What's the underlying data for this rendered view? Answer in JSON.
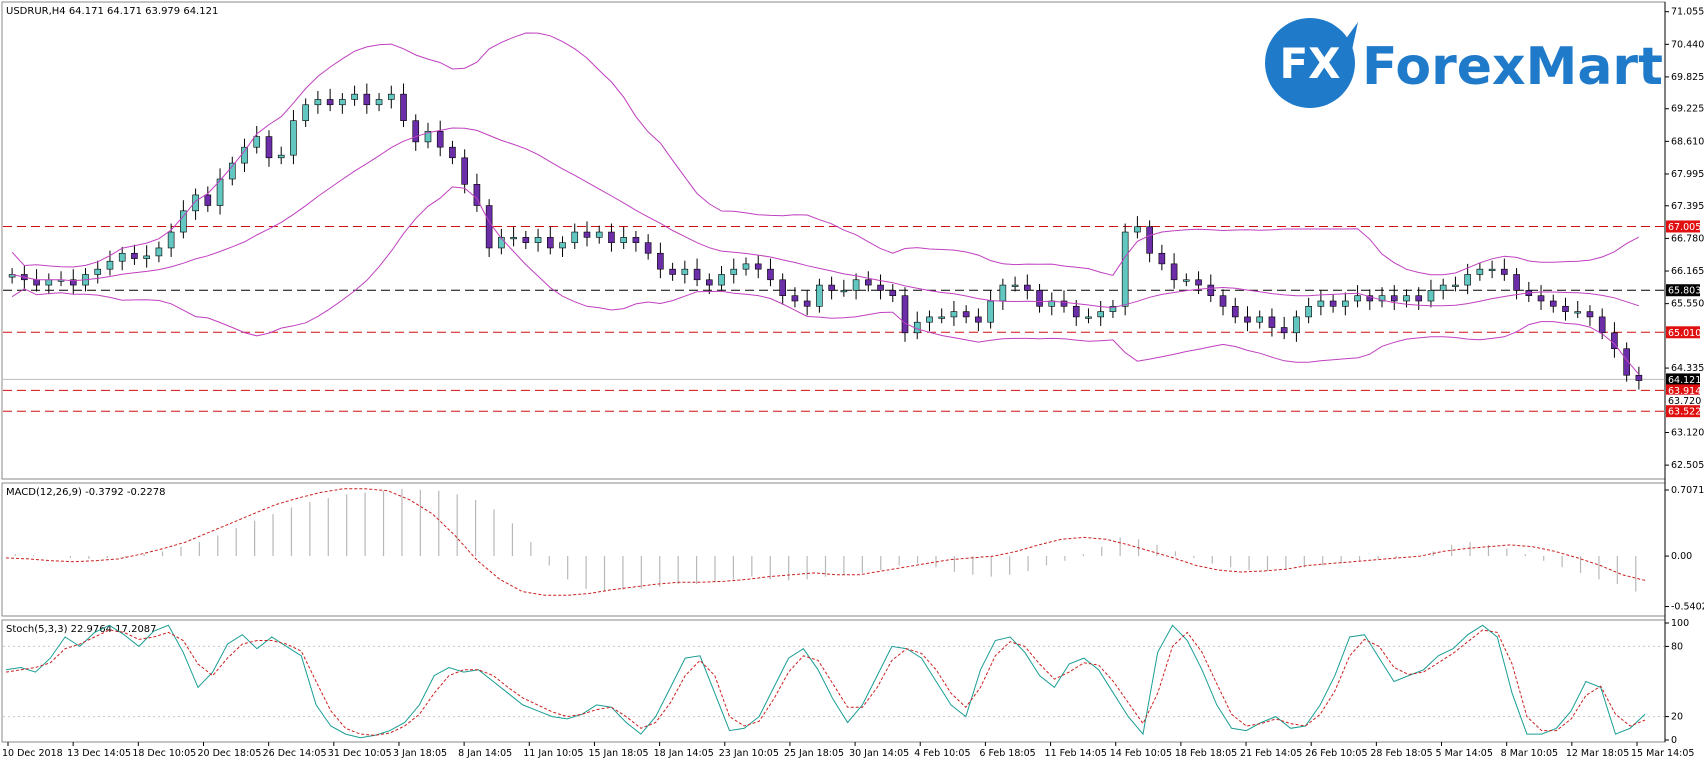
{
  "header": {
    "symbol_info": "USDRUR,H4  64.171 64.171 63.979 64.121",
    "macd_info": "MACD(12,26,9) -0.3792 -0.2278",
    "stoch_info": "Stoch(5,3,3) 22.9764 17.2087"
  },
  "logo": {
    "part1": "Forex",
    "part2": "Mart",
    "emblem": "FX"
  },
  "chart_data": [
    {
      "type": "candlestick",
      "title": "USDRUR,H4",
      "ylim": [
        62.3,
        71.2
      ],
      "yticks": [
        "71.055",
        "70.440",
        "69.825",
        "69.225",
        "68.610",
        "67.995",
        "67.395",
        "66.780",
        "66.165",
        "65.550",
        "64.335",
        "63.120",
        "62.505"
      ],
      "yticks_values": [
        71.055,
        70.44,
        69.825,
        69.225,
        68.61,
        67.995,
        67.395,
        66.78,
        66.165,
        65.55,
        64.335,
        63.12,
        62.505
      ],
      "xticks": [
        "10 Dec 2018",
        "13 Dec 14:05",
        "18 Dec 10:05",
        "20 Dec 18:05",
        "26 Dec 14:05",
        "31 Dec 10:05",
        "3 Jan 18:05",
        "8 Jan 14:05",
        "11 Jan 10:05",
        "15 Jan 18:05",
        "18 Jan 14:05",
        "23 Jan 10:05",
        "25 Jan 18:05",
        "30 Jan 14:05",
        "4 Feb 10:05",
        "6 Feb 18:05",
        "11 Feb 14:05",
        "14 Feb 10:05",
        "18 Feb 18:05",
        "21 Feb 14:05",
        "26 Feb 10:05",
        "28 Feb 18:05",
        "5 Mar 14:05",
        "8 Mar 10:05",
        "12 Mar 18:05",
        "15 Mar 14:05"
      ],
      "level_tags": [
        {
          "label": "67.005",
          "value": 67.005,
          "color": "#e01010"
        },
        {
          "label": "65.803",
          "value": 65.803,
          "color": "#000000"
        },
        {
          "label": "65.010",
          "value": 65.01,
          "color": "#e01010"
        },
        {
          "label": "64.121",
          "value": 64.121,
          "color": "#000000"
        },
        {
          "label": "63.914",
          "value": 63.914,
          "color": "#e01010"
        },
        {
          "label": "63.720",
          "value": 63.72,
          "color": "#ffffff"
        },
        {
          "label": "63.522",
          "value": 63.522,
          "color": "#e01010"
        }
      ],
      "horizontal_lines": [
        {
          "value": 67.005,
          "color": "#d01010"
        },
        {
          "value": 65.803,
          "color": "#000000"
        },
        {
          "value": 65.01,
          "color": "#d01010"
        },
        {
          "value": 63.914,
          "color": "#d01010"
        },
        {
          "value": 63.522,
          "color": "#d01010"
        }
      ],
      "close_series": [
        66.1,
        66.0,
        65.9,
        66.0,
        66.0,
        65.9,
        66.1,
        66.2,
        66.35,
        66.5,
        66.4,
        66.45,
        66.6,
        66.9,
        67.3,
        67.6,
        67.4,
        67.9,
        68.2,
        68.5,
        68.7,
        68.3,
        68.35,
        69.0,
        69.3,
        69.4,
        69.3,
        69.4,
        69.5,
        69.3,
        69.4,
        69.5,
        69.0,
        68.6,
        68.8,
        68.5,
        68.3,
        67.8,
        67.4,
        66.6,
        66.8,
        66.8,
        66.7,
        66.8,
        66.6,
        66.7,
        66.9,
        66.8,
        66.9,
        66.7,
        66.8,
        66.7,
        66.5,
        66.2,
        66.1,
        66.2,
        66.0,
        65.9,
        66.1,
        66.2,
        66.3,
        66.2,
        66.0,
        65.7,
        65.6,
        65.5,
        65.9,
        65.8,
        65.8,
        66.0,
        65.9,
        65.8,
        65.7,
        65.0,
        65.2,
        65.3,
        65.3,
        65.4,
        65.3,
        65.2,
        65.6,
        65.9,
        65.9,
        65.8,
        65.5,
        65.6,
        65.5,
        65.3,
        65.3,
        65.4,
        65.5,
        66.9,
        67.0,
        66.5,
        66.3,
        66.0,
        66.0,
        65.9,
        65.7,
        65.5,
        65.3,
        65.2,
        65.3,
        65.1,
        65.0,
        65.3,
        65.5,
        65.6,
        65.5,
        65.6,
        65.7,
        65.6,
        65.7,
        65.6,
        65.7,
        65.6,
        65.8,
        65.9,
        65.9,
        66.1,
        66.2,
        66.2,
        66.1,
        65.8,
        65.7,
        65.6,
        65.5,
        65.4,
        65.4,
        65.3,
        65.0,
        64.7,
        64.2,
        64.1
      ],
      "series": [
        {
          "name": "Bollinger Bands",
          "color": "#c040c0",
          "values": [
            66.7,
            70.0,
            65.0
          ]
        }
      ]
    },
    {
      "type": "bar",
      "title": "MACD(12,26,9)",
      "ylim": [
        -0.62,
        0.75
      ],
      "yticks": [
        "0.7071",
        "0.00",
        "-0.5402"
      ],
      "yticks_values": [
        0.7071,
        0.0,
        -0.5402
      ],
      "histogram": [
        0.02,
        0.01,
        0.0,
        -0.02,
        -0.03,
        -0.02,
        -0.01,
        0.02,
        0.05,
        0.1,
        0.15,
        0.22,
        0.3,
        0.38,
        0.45,
        0.52,
        0.58,
        0.62,
        0.66,
        0.68,
        0.7,
        0.72,
        0.71,
        0.7,
        0.66,
        0.6,
        0.5,
        0.35,
        0.15,
        -0.1,
        -0.25,
        -0.35,
        -0.38,
        -0.36,
        -0.35,
        -0.33,
        -0.3,
        -0.3,
        -0.28,
        -0.25,
        -0.22,
        -0.25,
        -0.26,
        -0.25,
        -0.22,
        -0.2,
        -0.18,
        -0.15,
        -0.1,
        -0.08,
        -0.12,
        -0.17,
        -0.2,
        -0.22,
        -0.2,
        -0.16,
        -0.1,
        -0.05,
        0.02,
        0.1,
        0.2,
        0.18,
        0.12,
        0.05,
        -0.02,
        -0.08,
        -0.12,
        -0.15,
        -0.16,
        -0.15,
        -0.12,
        -0.1,
        -0.08,
        -0.05,
        -0.03,
        -0.02,
        0.0,
        0.05,
        0.12,
        0.15,
        0.12,
        0.08,
        0.02,
        -0.05,
        -0.12,
        -0.18,
        -0.25,
        -0.3,
        -0.38
      ],
      "signal": [
        -0.02,
        -0.03,
        -0.05,
        -0.06,
        -0.05,
        -0.03,
        0.02,
        0.08,
        0.15,
        0.25,
        0.35,
        0.45,
        0.55,
        0.62,
        0.68,
        0.72,
        0.72,
        0.7,
        0.6,
        0.45,
        0.22,
        -0.05,
        -0.25,
        -0.38,
        -0.42,
        -0.42,
        -0.4,
        -0.36,
        -0.33,
        -0.3,
        -0.28,
        -0.28,
        -0.27,
        -0.25,
        -0.22,
        -0.2,
        -0.18,
        -0.2,
        -0.2,
        -0.16,
        -0.12,
        -0.08,
        -0.04,
        -0.02,
        0.0,
        0.05,
        0.12,
        0.18,
        0.2,
        0.18,
        0.12,
        0.05,
        -0.02,
        -0.1,
        -0.15,
        -0.17,
        -0.16,
        -0.14,
        -0.1,
        -0.08,
        -0.06,
        -0.04,
        -0.02,
        0.0,
        0.05,
        0.08,
        0.1,
        0.12,
        0.1,
        0.05,
        -0.02,
        -0.1,
        -0.2,
        -0.26
      ]
    },
    {
      "type": "line",
      "title": "Stoch(5,3,3)",
      "ylim": [
        0,
        100
      ],
      "yticks": [
        "100",
        "80",
        "20",
        "0"
      ],
      "yticks_values": [
        100,
        80,
        20,
        0
      ],
      "series": [
        {
          "name": "Main",
          "color": "#1a9e95",
          "values": [
            60,
            62,
            58,
            70,
            88,
            80,
            92,
            98,
            90,
            80,
            93,
            98,
            75,
            45,
            58,
            82,
            90,
            78,
            88,
            80,
            72,
            30,
            12,
            5,
            2,
            4,
            8,
            15,
            30,
            55,
            62,
            58,
            60,
            50,
            40,
            30,
            25,
            20,
            18,
            22,
            30,
            28,
            15,
            5,
            20,
            45,
            70,
            72,
            40,
            8,
            10,
            20,
            45,
            70,
            78,
            60,
            35,
            15,
            30,
            55,
            80,
            78,
            70,
            50,
            30,
            20,
            60,
            85,
            88,
            75,
            55,
            45,
            65,
            70,
            60,
            40,
            20,
            5,
            75,
            98,
            85,
            60,
            30,
            10,
            8,
            15,
            20,
            10,
            12,
            30,
            55,
            88,
            90,
            70,
            50,
            55,
            60,
            72,
            78,
            90,
            98,
            88,
            40,
            5,
            5,
            10,
            25,
            50,
            45,
            5,
            10,
            22
          ]
        },
        {
          "name": "Signal",
          "color": "#cc2020",
          "values": [
            58,
            60,
            62,
            66,
            78,
            82,
            88,
            94,
            92,
            86,
            88,
            92,
            85,
            65,
            55,
            70,
            82,
            85,
            85,
            82,
            76,
            50,
            25,
            10,
            5,
            4,
            6,
            12,
            22,
            40,
            55,
            60,
            60,
            55,
            45,
            36,
            30,
            24,
            20,
            22,
            26,
            28,
            20,
            10,
            15,
            32,
            55,
            68,
            55,
            20,
            12,
            16,
            35,
            58,
            72,
            68,
            48,
            28,
            28,
            45,
            68,
            78,
            74,
            60,
            40,
            28,
            45,
            72,
            84,
            80,
            65,
            52,
            58,
            66,
            64,
            50,
            32,
            14,
            40,
            80,
            92,
            75,
            48,
            22,
            12,
            14,
            18,
            14,
            12,
            22,
            42,
            72,
            86,
            80,
            62,
            56,
            58,
            66,
            74,
            84,
            94,
            92,
            65,
            20,
            8,
            8,
            18,
            38,
            46,
            22,
            12,
            17
          ]
        }
      ]
    }
  ]
}
